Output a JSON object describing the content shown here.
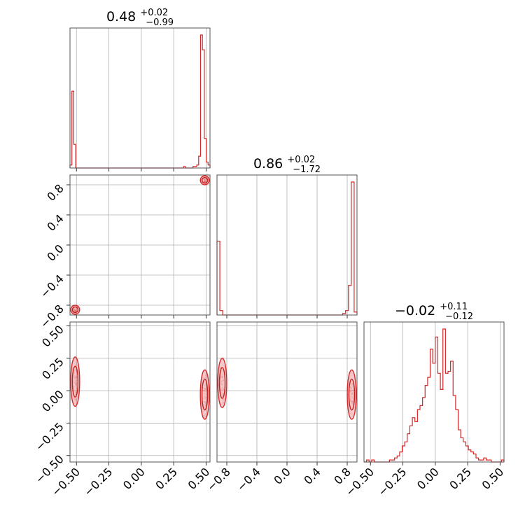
{
  "colors": {
    "series": "#d62728",
    "grid": "#b0b0b0",
    "frame": "#555555"
  },
  "chart_data": {
    "type": "corner",
    "grid": true,
    "parameters": [
      {
        "title": {
          "median": "0.48",
          "plus": "+0.02",
          "minus": "−0.99"
        },
        "range": [
          -0.55,
          0.53
        ],
        "ticks": [
          -0.5,
          -0.25,
          0.0,
          0.25,
          0.5
        ],
        "tick_labels": [
          "−0.50",
          "−0.25",
          "0.00",
          "0.25",
          "0.50"
        ]
      },
      {
        "title": {
          "median": "0.86",
          "plus": "+0.02",
          "minus": "−1.72"
        },
        "range": [
          -0.93,
          0.93
        ],
        "ticks": [
          -0.8,
          -0.4,
          0.0,
          0.4,
          0.8
        ],
        "tick_labels": [
          "−0.8",
          "−0.4",
          "0.0",
          "0.4",
          "0.8"
        ]
      },
      {
        "title": {
          "median": "−0.02",
          "plus": "+0.11",
          "minus": "−0.12"
        },
        "range": [
          -0.55,
          0.53
        ],
        "ticks": [
          -0.5,
          -0.25,
          0.0,
          0.25,
          0.5
        ],
        "tick_labels": [
          "−0.50",
          "−0.25",
          "0.00",
          "0.25",
          "0.50"
        ]
      }
    ],
    "histograms": [
      {
        "bins": [
          -0.55,
          0.53
        ],
        "counts": [
          2,
          52,
          16,
          0,
          0,
          0,
          0,
          0,
          0,
          0,
          0,
          0,
          0,
          0,
          0,
          0,
          0,
          0,
          0,
          0,
          0,
          0,
          0,
          0,
          0,
          0,
          0,
          0,
          0,
          0,
          0,
          0,
          0,
          0,
          0,
          0,
          0,
          0,
          0,
          0,
          0,
          0,
          0,
          0,
          0,
          0,
          0,
          0,
          0,
          0,
          0,
          0,
          0,
          0,
          0,
          0,
          0,
          0,
          0,
          0,
          1,
          0,
          0,
          0,
          0,
          1,
          1,
          2,
          8,
          90,
          80,
          20,
          4,
          2
        ]
      },
      {
        "bins": [
          -0.93,
          0.93
        ],
        "counts": [
          50,
          3,
          0,
          0,
          0,
          0,
          0,
          0,
          0,
          0,
          0,
          0,
          0,
          0,
          0,
          0,
          0,
          0,
          0,
          0,
          0,
          0,
          0,
          0,
          0,
          0,
          0,
          0,
          0,
          0,
          0,
          0,
          0,
          0,
          0,
          0,
          0,
          0,
          0,
          0,
          0,
          0,
          0,
          0,
          1,
          3,
          20,
          90,
          2
        ]
      },
      {
        "bins": [
          -0.55,
          0.53
        ],
        "counts": [
          0,
          1,
          0,
          1,
          0,
          0,
          0,
          0,
          0,
          0,
          1,
          1,
          2,
          3,
          5,
          8,
          10,
          14,
          18,
          22,
          20,
          26,
          28,
          32,
          38,
          42,
          56,
          49,
          62,
          44,
          36,
          66,
          44,
          45,
          50,
          33,
          26,
          16,
          12,
          10,
          8,
          6,
          5,
          4,
          2,
          1,
          1,
          2,
          1,
          1,
          0,
          0,
          0,
          0,
          1
        ]
      }
    ],
    "scatter_pairs": [
      {
        "x_param": 0,
        "y_param": 1,
        "modes": [
          {
            "x": 0.49,
            "y": 0.86
          },
          {
            "x": -0.51,
            "y": -0.86
          }
        ]
      },
      {
        "x_param": 0,
        "y_param": 2,
        "modes": [
          {
            "x": -0.51,
            "y": 0.07
          },
          {
            "x": 0.49,
            "y": -0.03
          }
        ]
      },
      {
        "x_param": 1,
        "y_param": 2,
        "modes": [
          {
            "x": -0.86,
            "y": 0.06
          },
          {
            "x": 0.86,
            "y": -0.03
          }
        ]
      }
    ]
  }
}
